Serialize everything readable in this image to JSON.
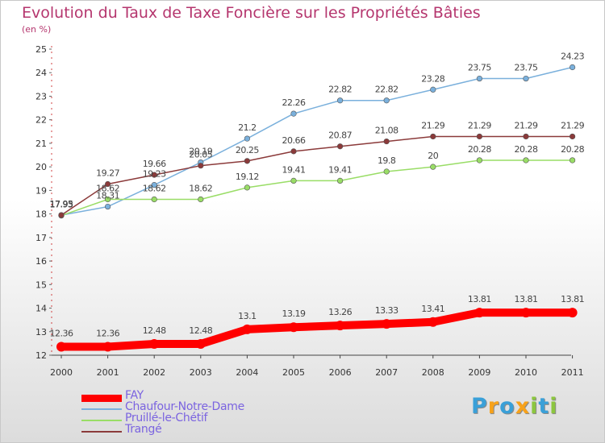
{
  "title": "Evolution du Taux de Taxe Foncière sur les Propriétés Bâties",
  "unit": "(en %)",
  "brand": {
    "letters": [
      "P",
      "r",
      "o",
      "x",
      "i",
      "t",
      "i"
    ],
    "colors": [
      "#3aa0d8",
      "#f7a21b",
      "#3aa0d8",
      "#f7a21b",
      "#8cc63f",
      "#3aa0d8",
      "#8cc63f"
    ]
  },
  "chart_data": {
    "type": "line",
    "title": "Evolution du Taux de Taxe Foncière sur les Propriétés Bâties",
    "ylabel": "(en %)",
    "xlabel": "",
    "ylim": [
      12,
      25
    ],
    "yticks": [
      12,
      13,
      14,
      15,
      16,
      17,
      18,
      19,
      20,
      21,
      22,
      23,
      24,
      25
    ],
    "x": [
      "2000",
      "2001",
      "2002",
      "2003",
      "2004",
      "2005",
      "2006",
      "2007",
      "2008",
      "2009",
      "2010",
      "2011"
    ],
    "series": [
      {
        "name": "FAY",
        "color": "#ff0000",
        "values": [
          12.36,
          12.36,
          12.48,
          12.48,
          13.1,
          13.19,
          13.26,
          13.33,
          13.41,
          13.81,
          13.81,
          13.81
        ],
        "labels": [
          "12.36",
          "12.36",
          "12.48",
          "12.48",
          "13.1",
          "13.19",
          "13.26",
          "13.33",
          "13.41",
          "13.81",
          "13.81",
          "13.81"
        ]
      },
      {
        "name": "Chaufour-Notre-Dame",
        "color": "#7ab0dc",
        "values": [
          17.95,
          18.31,
          19.23,
          20.19,
          21.2,
          22.26,
          22.82,
          22.82,
          23.28,
          23.75,
          23.75,
          24.23
        ],
        "labels": [
          "17.95",
          "18.31",
          "19.23",
          "20.19",
          "21.2",
          "22.26",
          "22.82",
          "22.82",
          "23.28",
          "23.75",
          "23.75",
          "24.23"
        ]
      },
      {
        "name": "Pruillé-le-Chétif",
        "color": "#99dd66",
        "values": [
          17.93,
          18.62,
          18.62,
          18.62,
          19.12,
          19.41,
          19.41,
          19.8,
          20,
          20.28,
          20.28,
          20.28
        ],
        "labels": [
          "17.93",
          "18.62",
          "18.62",
          "18.62",
          "19.12",
          "19.41",
          "19.41",
          "19.8",
          "20",
          "20.28",
          "20.28",
          "20.28"
        ]
      },
      {
        "name": "Trangé",
        "color": "#8b3a3a",
        "values": [
          17.95,
          19.27,
          19.66,
          20.05,
          20.25,
          20.66,
          20.87,
          21.08,
          21.29,
          21.29,
          21.29,
          21.29
        ],
        "labels": [
          "17.95",
          "19.27",
          "19.66",
          "20.05",
          "20.25",
          "20.66",
          "20.87",
          "21.08",
          "21.29",
          "21.29",
          "21.29",
          "21.29"
        ]
      }
    ],
    "legend_position": "bottom-left",
    "grid": false
  }
}
